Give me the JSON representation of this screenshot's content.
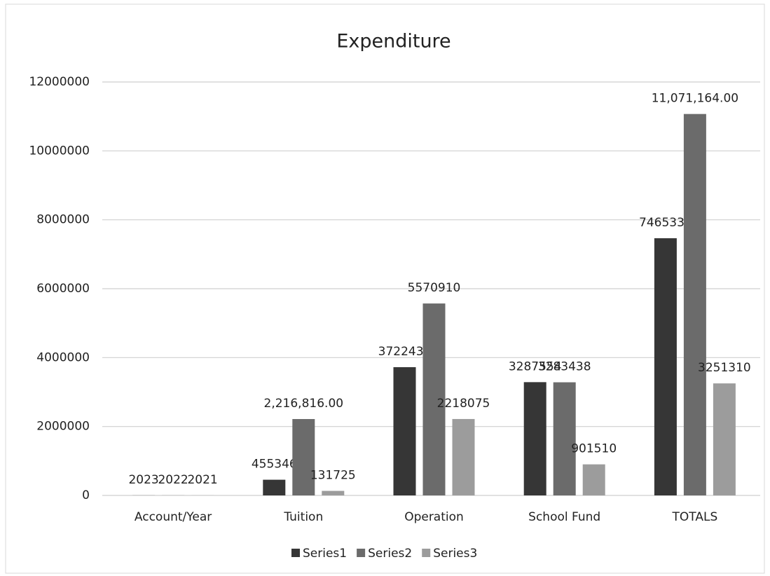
{
  "chart_data": {
    "type": "bar",
    "title": "Expenditure",
    "categories": [
      "Account/Year",
      "Tuition",
      "Operation",
      "School Fund",
      "TOTALS"
    ],
    "series": [
      {
        "name": "Series1",
        "color": "#363636",
        "values": [
          2023,
          455346,
          3722430,
          3287554,
          7465330
        ]
      },
      {
        "name": "Series2",
        "color": "#6b6b6b",
        "values": [
          2022,
          2216816,
          5570910,
          3283438,
          11071164
        ],
        "value_labels": [
          "2022",
          "2,216,816.00",
          "5570910",
          "3283438",
          "11,071,164.00"
        ]
      },
      {
        "name": "Series3",
        "color": "#9c9c9c",
        "values": [
          2021,
          131725,
          2218075,
          901510,
          3251310
        ]
      }
    ],
    "ylim": [
      0,
      12000000
    ],
    "yticks": [
      0,
      2000000,
      4000000,
      6000000,
      8000000,
      10000000,
      12000000
    ],
    "grid": true,
    "legend": "bottom"
  }
}
